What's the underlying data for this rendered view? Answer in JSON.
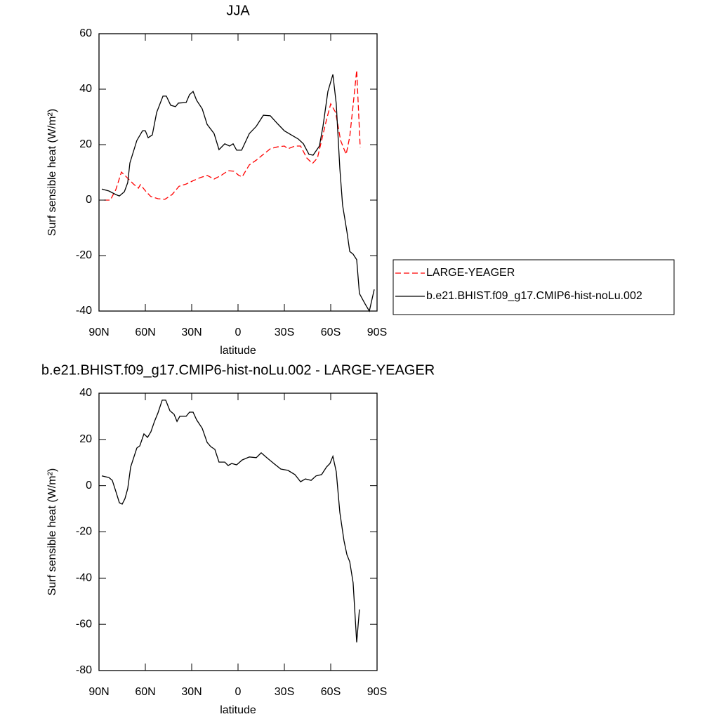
{
  "chart_data": [
    {
      "type": "line",
      "title": "JJA",
      "xlabel": "latitude",
      "ylabel": "Surf sensible heat (W/m²)",
      "xlim": [
        90,
        -90
      ],
      "xticks": [
        {
          "value": 90,
          "label": "90N"
        },
        {
          "value": 60,
          "label": "60N"
        },
        {
          "value": 30,
          "label": "30N"
        },
        0,
        {
          "value": -30,
          "label": "30S"
        },
        {
          "value": -60,
          "label": "60S"
        },
        {
          "value": -90,
          "label": "90S"
        }
      ],
      "ylim": [
        -40,
        60
      ],
      "yticks": [
        -40,
        -20,
        0,
        20,
        40,
        60
      ],
      "legend": "right",
      "series": [
        {
          "name": "LARGE-YEAGER",
          "color": "#ff0000",
          "line_style": "dashed",
          "x": [
            86.8,
            82.7,
            79.1,
            75.5,
            72.3,
            67.7,
            64.5,
            63.2,
            59.5,
            56.4,
            51.8,
            47.3,
            42.7,
            38.2,
            33.6,
            29.1,
            24.5,
            20.0,
            15.5,
            10.9,
            6.4,
            2.7,
            -0.5,
            -2.7,
            -7.3,
            -11.8,
            -16.4,
            -20.9,
            -25.5,
            -30.0,
            -32.3,
            -36.8,
            -40.5,
            -44.5,
            -48.2,
            -51.4,
            -54.1,
            -57.3,
            -60.0,
            -63.2,
            -66.4,
            -70.0,
            -72.3,
            -74.5,
            -76.8,
            -79.1
          ],
          "values": [
            0,
            0,
            3.8,
            10.1,
            8.4,
            5.8,
            4.3,
            5.6,
            3,
            1.3,
            0.5,
            0.3,
            2,
            5,
            5.8,
            7,
            8.1,
            8.9,
            7.6,
            8.9,
            10.6,
            10.4,
            8.9,
            8.4,
            12.7,
            14.4,
            16.5,
            18.5,
            19.2,
            19.5,
            18.5,
            19.5,
            19.5,
            15.2,
            13.2,
            15.2,
            21.5,
            29.1,
            34.7,
            31.6,
            21.5,
            16.5,
            22.8,
            34.2,
            46.8,
            19
          ]
        },
        {
          "name": "b.e21.BHIST.f09_g17.CMIP6-hist-noLu.002",
          "color": "#000000",
          "line_style": "solid",
          "x": [
            88.2,
            83.6,
            79.1,
            76.8,
            73.6,
            71.4,
            70.0,
            65.5,
            61.8,
            60.0,
            58.2,
            55.5,
            52.7,
            48.6,
            46.4,
            43.6,
            40.5,
            38.6,
            33.6,
            31.4,
            29.1,
            26.8,
            23.2,
            20.0,
            15.5,
            12.3,
            8.6,
            5.5,
            3.2,
            0.9,
            -2.3,
            -7.3,
            -11.8,
            -16.4,
            -20.9,
            -25.5,
            -30.0,
            -34.5,
            -39.1,
            -42.3,
            -45.9,
            -48.6,
            -52.7,
            -55.0,
            -58.2,
            -61.4,
            -63.6,
            -65.9,
            -67.7,
            -70.5,
            -72.3,
            -74.5,
            -76.8,
            -78.6,
            -82.3,
            -85.0,
            -88.2
          ],
          "values": [
            4,
            3.3,
            2,
            1.5,
            3,
            6.3,
            13.4,
            21.5,
            25,
            25,
            22.5,
            23.5,
            31.6,
            37.5,
            37.5,
            34.2,
            33.7,
            35,
            35.2,
            38,
            39.2,
            36,
            32.9,
            27.3,
            24,
            18.2,
            20.3,
            19.5,
            20.3,
            18,
            18,
            24,
            26.6,
            30.6,
            30.4,
            27.6,
            25,
            23.5,
            22,
            20.3,
            16.5,
            16.2,
            19.5,
            26.6,
            39.2,
            45.3,
            34.7,
            11.4,
            -1.8,
            -11.4,
            -18.5,
            -19.5,
            -21.5,
            -33.7,
            -37.5,
            -40,
            -32.2
          ]
        }
      ]
    },
    {
      "type": "line",
      "title": "b.e21.BHIST.f09_g17.CMIP6-hist-noLu.002 - LARGE-YEAGER",
      "xlabel": "latitude",
      "ylabel": "Surf sensible heat (W/m²)",
      "xlim": [
        90,
        -90
      ],
      "xticks": [
        {
          "value": 90,
          "label": "90N"
        },
        {
          "value": 60,
          "label": "60N"
        },
        {
          "value": 30,
          "label": "30N"
        },
        0,
        {
          "value": -30,
          "label": "30S"
        },
        {
          "value": -60,
          "label": "60S"
        },
        {
          "value": -90,
          "label": "90S"
        }
      ],
      "ylim": [
        -80,
        40
      ],
      "yticks": [
        -80,
        -60,
        -40,
        -20,
        0,
        20,
        40
      ],
      "series": [
        {
          "color": "#000000",
          "line_style": "solid",
          "x": [
            88.2,
            83.6,
            81.4,
            79.1,
            76.8,
            75.0,
            73.2,
            71.4,
            69.5,
            65.5,
            63.6,
            60.9,
            58.6,
            56.4,
            54.1,
            51.8,
            49.1,
            46.8,
            44.1,
            41.4,
            39.5,
            37.7,
            33.6,
            31.4,
            29.1,
            26.8,
            23.2,
            20.0,
            17.7,
            15.0,
            12.3,
            8.6,
            6.4,
            4.1,
            0.9,
            -2.7,
            -7.3,
            -11.8,
            -15.0,
            -18.6,
            -23.2,
            -27.7,
            -32.3,
            -36.8,
            -40.5,
            -43.6,
            -47.3,
            -50.5,
            -54.1,
            -57.3,
            -59.5,
            -61.4,
            -63.6,
            -65.9,
            -68.6,
            -70.5,
            -72.3,
            -74.5,
            -76.8,
            -78.6
          ],
          "values": [
            4.2,
            3.5,
            2.3,
            -2.5,
            -7.4,
            -8,
            -5.6,
            -1.3,
            8.1,
            16.3,
            17.2,
            22.4,
            20.9,
            23.3,
            27.8,
            31.5,
            37,
            37,
            32.4,
            30.9,
            27.8,
            30,
            30,
            31.8,
            31.8,
            28.5,
            24.8,
            18.7,
            16.9,
            15.7,
            10.2,
            10.2,
            8.7,
            9.6,
            9,
            11.1,
            12.4,
            12.1,
            14.2,
            12.1,
            9.6,
            7.2,
            6.6,
            4.8,
            1.7,
            2.9,
            2.3,
            4.2,
            4.8,
            8.1,
            9.6,
            12.7,
            6,
            -11.6,
            -23.8,
            -29.9,
            -32.9,
            -42,
            -67.8,
            -53.6
          ]
        }
      ]
    }
  ]
}
